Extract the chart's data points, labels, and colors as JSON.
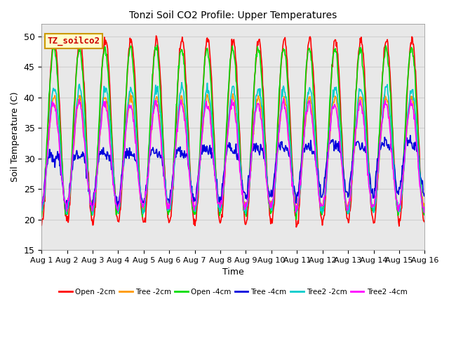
{
  "title": "Tonzi Soil CO2 Profile: Upper Temperatures",
  "xlabel": "Time",
  "ylabel": "Soil Temperature (C)",
  "ylim": [
    15,
    52
  ],
  "xlim_days": 15,
  "series": [
    {
      "label": "Open -2cm",
      "color": "#ff0000",
      "amplitude": 15.0,
      "mean": 34.5,
      "phase": 0.0,
      "lw": 1.2,
      "amp_mod": 1.0,
      "noise": 0.4
    },
    {
      "label": "Tree -2cm",
      "color": "#ff9900",
      "amplitude": 9.0,
      "mean": 31.0,
      "phase": 0.08,
      "lw": 1.2,
      "amp_mod": 0.85,
      "noise": 0.4
    },
    {
      "label": "Open -4cm",
      "color": "#00dd00",
      "amplitude": 13.5,
      "mean": 34.5,
      "phase": 0.12,
      "lw": 1.2,
      "amp_mod": 0.95,
      "noise": 0.4
    },
    {
      "label": "Tree -4cm",
      "color": "#0000dd",
      "amplitude": 4.0,
      "mean": 27.5,
      "phase": 0.25,
      "lw": 1.2,
      "amp_mod": 1.0,
      "noise": 0.5
    },
    {
      "label": "Tree2 -2cm",
      "color": "#00cccc",
      "amplitude": 10.0,
      "mean": 31.5,
      "phase": 0.05,
      "lw": 1.2,
      "amp_mod": 0.9,
      "noise": 0.4
    },
    {
      "label": "Tree2 -4cm",
      "color": "#ff00ff",
      "amplitude": 8.5,
      "mean": 30.5,
      "phase": 0.18,
      "lw": 1.2,
      "amp_mod": 0.9,
      "noise": 0.4
    }
  ],
  "xtick_labels": [
    "Aug 1",
    "Aug 2",
    "Aug 3",
    "Aug 4",
    "Aug 5",
    "Aug 6",
    "Aug 7",
    "Aug 8",
    "Aug 9",
    "Aug 10",
    "Aug 11",
    "Aug 12",
    "Aug 13",
    "Aug 14",
    "Aug 15",
    "Aug 16"
  ],
  "xtick_positions": [
    0,
    1,
    2,
    3,
    4,
    5,
    6,
    7,
    8,
    9,
    10,
    11,
    12,
    13,
    14,
    15
  ],
  "annotation_text": "TZ_soilco2",
  "annotation_color": "#cc0000",
  "annotation_bg": "#ffffcc",
  "annotation_border": "#cc9900",
  "grid_color": "#d0d0d0",
  "plot_bg": "#e8e8e8",
  "fig_bg": "#ffffff",
  "yticks": [
    15,
    20,
    25,
    30,
    35,
    40,
    45,
    50
  ]
}
